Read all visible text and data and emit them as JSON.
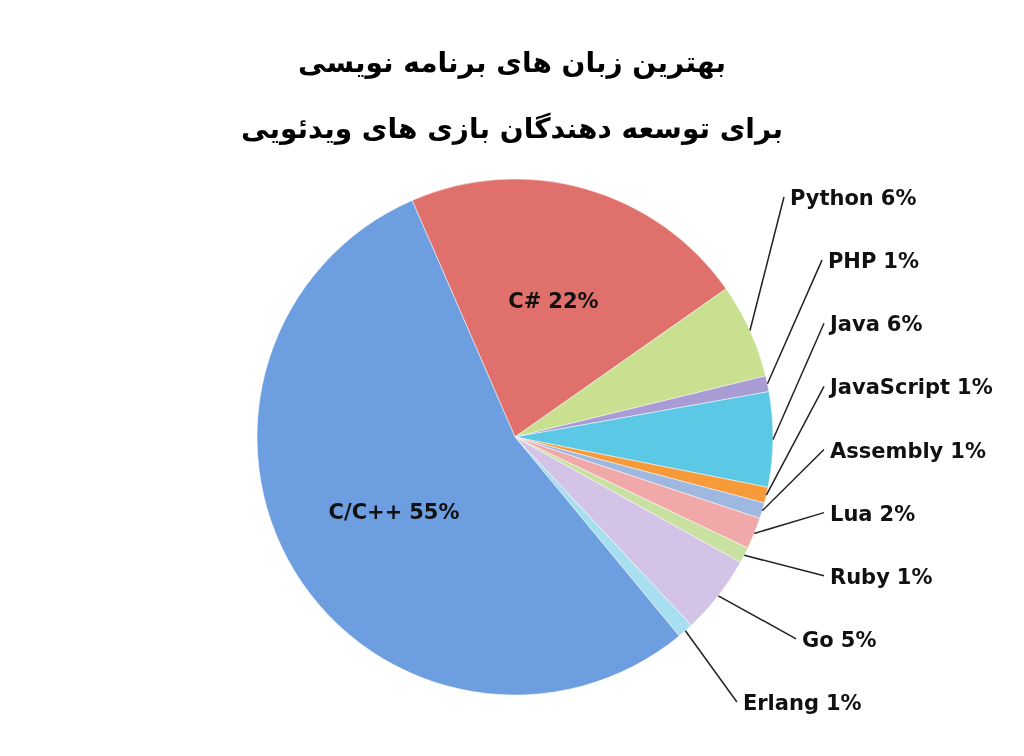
{
  "chart_data": {
    "type": "pie",
    "title": "بهترین زبان های برنامه نویسی",
    "subtitle": "برای توسعه دهندگان بازی های ویدئویی",
    "categories": [
      "C#",
      "Python",
      "PHP",
      "Java",
      "JavaScript",
      "Assembly",
      "Lua",
      "Ruby",
      "Go",
      "Erlang",
      "C/C++"
    ],
    "values": [
      22,
      6,
      1,
      6,
      1,
      1,
      2,
      1,
      5,
      1,
      55
    ],
    "colors": [
      "#e0706b",
      "#c8e08f",
      "#a99bd4",
      "#5bc8e6",
      "#f79a3a",
      "#9fb8e0",
      "#f0a8a8",
      "#c8e0a0",
      "#d3c3e6",
      "#a8dff0",
      "#6d9ee0"
    ],
    "value_labels": [
      "22%",
      "6%",
      "1%",
      "6%",
      "1%",
      "1%",
      "2%",
      "1%",
      "5%",
      "1%",
      "55%"
    ]
  }
}
